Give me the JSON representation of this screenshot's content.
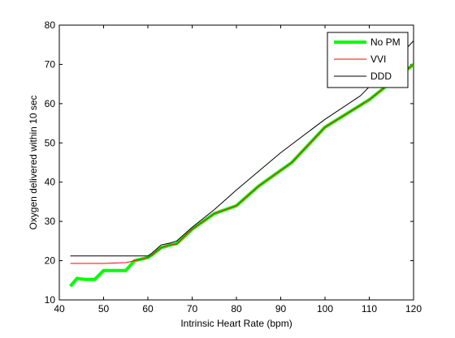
{
  "chart_data": {
    "type": "line",
    "title": "",
    "xlabel": "Intrinsic Heart Rate (bpm)",
    "ylabel": "Oxygen delivered within 10 sec",
    "xlim": [
      40,
      120
    ],
    "ylim": [
      10,
      80
    ],
    "xticks": [
      40,
      50,
      60,
      70,
      80,
      90,
      100,
      110,
      120
    ],
    "yticks": [
      10,
      20,
      30,
      40,
      50,
      60,
      70,
      80
    ],
    "grid": false,
    "legend_position": "top-right",
    "series": [
      {
        "name": "No PM",
        "color": "#00ff00",
        "width": "thick",
        "x": [
          42.5,
          44,
          45,
          46,
          48,
          50,
          52,
          53,
          55,
          57,
          59,
          60,
          61,
          63,
          65,
          66.5,
          70,
          75,
          80,
          85,
          92.5,
          100,
          110,
          120
        ],
        "y": [
          13.5,
          15.5,
          15.3,
          15.2,
          15.2,
          17.5,
          17.5,
          17.5,
          17.5,
          20,
          20.5,
          20.8,
          21.5,
          23.3,
          24,
          24.3,
          28,
          32,
          34,
          39,
          45,
          54,
          61,
          70
        ]
      },
      {
        "name": "VVI",
        "color": "#ff0000",
        "width": "thin",
        "x": [
          42.5,
          50,
          55,
          57,
          59,
          60,
          61,
          63,
          65,
          66.5,
          70,
          75,
          80,
          85,
          92.5,
          100,
          110,
          120
        ],
        "y": [
          19.3,
          19.3,
          19.5,
          20,
          20.5,
          20.8,
          21.5,
          23.3,
          24,
          24.3,
          28,
          32,
          34,
          39,
          45,
          54,
          61,
          70
        ]
      },
      {
        "name": "DDD",
        "color": "#000000",
        "width": "thin",
        "x": [
          42.5,
          50,
          55,
          60,
          61,
          63,
          65,
          66.5,
          70,
          75,
          80,
          90,
          100,
          108,
          115,
          120
        ],
        "y": [
          21.2,
          21.2,
          21.2,
          21.2,
          22,
          24,
          24.5,
          25,
          28.5,
          33,
          38,
          47.5,
          56,
          62,
          70,
          76
        ]
      }
    ]
  }
}
